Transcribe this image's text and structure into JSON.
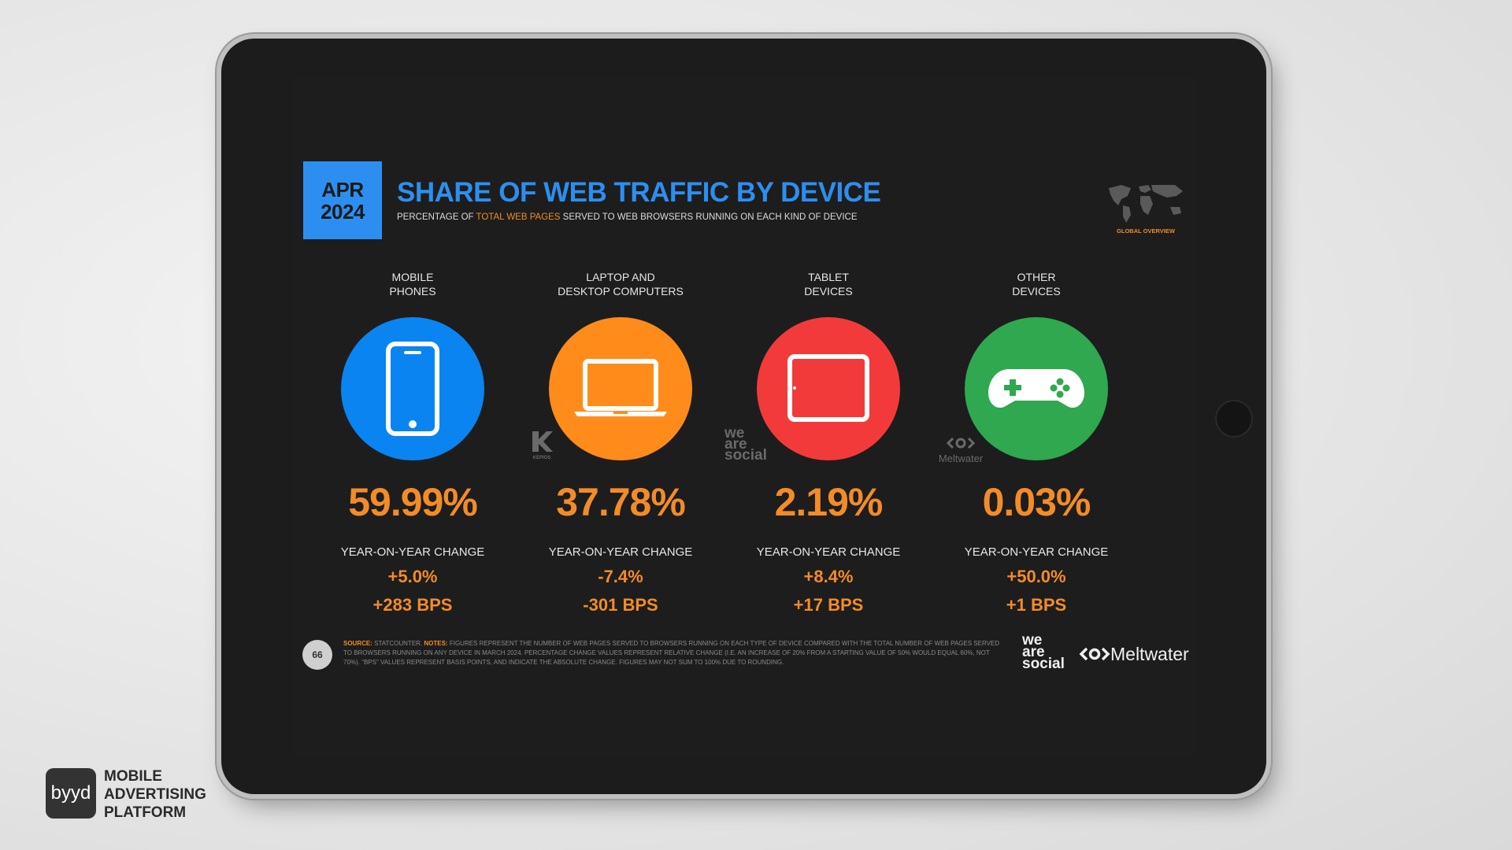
{
  "slide": {
    "date_line1": "APR",
    "date_line2": "2024",
    "title": "SHARE OF WEB TRAFFIC BY DEVICE",
    "subtitle_pre": "PERCENTAGE OF ",
    "subtitle_hl": "TOTAL WEB PAGES",
    "subtitle_post": " SERVED TO WEB BROWSERS RUNNING ON EACH KIND OF DEVICE",
    "badge_label": "GLOBAL OVERVIEW",
    "yoy_label": "YEAR-ON-YEAR CHANGE",
    "accent": "#f28c28",
    "title_color": "#2c8ff0",
    "devices": [
      {
        "line1": "MOBILE",
        "line2": "PHONES",
        "icon": "mobile-phone-icon",
        "color": "#0a84f0",
        "pct": "59.99%",
        "change": "+5.0%",
        "bps": "+283 BPS"
      },
      {
        "line1": "LAPTOP AND",
        "line2": "DESKTOP COMPUTERS",
        "icon": "laptop-icon",
        "color": "#ff8c1a",
        "pct": "37.78%",
        "change": "-7.4%",
        "bps": "-301 BPS"
      },
      {
        "line1": "TABLET",
        "line2": "DEVICES",
        "icon": "tablet-icon",
        "color": "#f33a3a",
        "pct": "2.19%",
        "change": "+8.4%",
        "bps": "+17 BPS"
      },
      {
        "line1": "OTHER",
        "line2": "DEVICES",
        "icon": "gamepad-icon",
        "color": "#2fa84f",
        "pct": "0.03%",
        "change": "+50.0%",
        "bps": "+1 BPS"
      }
    ],
    "separators": {
      "kepios": "KEPIOS",
      "was1": "we",
      "was2": "are",
      "was3": "social",
      "mw": "Meltwater"
    },
    "page_number": "66",
    "source_key": "SOURCE:",
    "source_val": " STATCOUNTER. ",
    "notes_key": "NOTES:",
    "notes_val": " FIGURES REPRESENT THE NUMBER OF WEB PAGES SERVED TO BROWSERS RUNNING ON EACH TYPE OF DEVICE COMPARED WITH THE TOTAL NUMBER OF WEB PAGES SERVED TO BROWSERS RUNNING ON ANY DEVICE IN MARCH 2024. PERCENTAGE CHANGE VALUES REPRESENT RELATIVE CHANGE (I.E. AN INCREASE OF 20% FROM A STARTING VALUE OF 50% WOULD EQUAL 60%, NOT 70%). \"BPS\" VALUES REPRESENT BASIS POINTS, AND INDICATE THE ABSOLUTE CHANGE. FIGURES MAY NOT SUM TO 100% DUE TO ROUNDING.",
    "footer_was1": "we",
    "footer_was2": "are",
    "footer_was3": "social",
    "footer_mw": "Meltwater"
  },
  "brand": {
    "logo_text": "byyd",
    "line1": "MOBILE",
    "line2": "ADVERTISING",
    "line3": "PLATFORM"
  }
}
